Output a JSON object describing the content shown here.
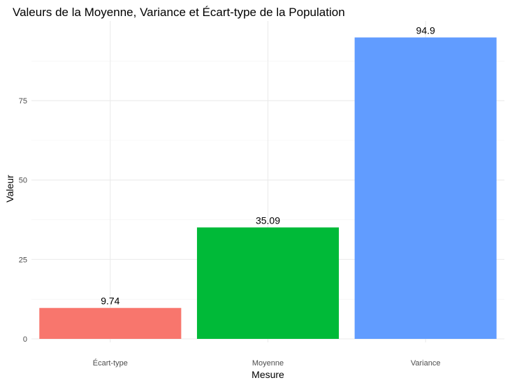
{
  "chart_data": {
    "type": "bar",
    "title": "Valeurs de la Moyenne, Variance et Écart-type de la Population",
    "xlabel": "Mesure",
    "ylabel": "Valeur",
    "categories": [
      "Écart-type",
      "Moyenne",
      "Variance"
    ],
    "values": [
      9.74,
      35.09,
      94.9
    ],
    "value_labels": [
      "9.74",
      "35.09",
      "94.9"
    ],
    "colors": [
      "#F8766D",
      "#00BA38",
      "#619CFF"
    ],
    "ylim": [
      0,
      99.6
    ],
    "yticks": [
      0,
      25,
      50,
      75
    ],
    "ytick_labels": [
      "0",
      "25",
      "50",
      "75"
    ],
    "grid": true,
    "legend": "none"
  }
}
